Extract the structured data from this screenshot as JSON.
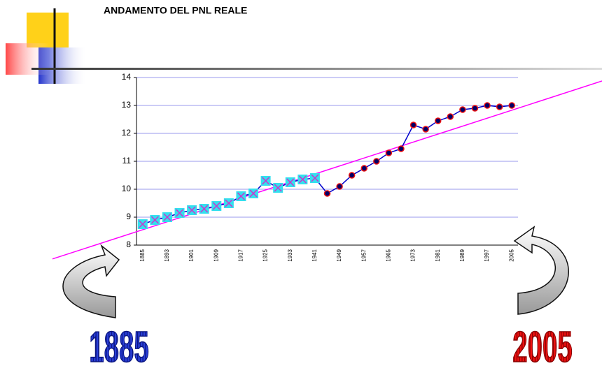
{
  "chart_data": {
    "type": "line",
    "title": "ANDAMENTO DEL PNL REALE",
    "categories": [
      "1885",
      null,
      "1893",
      null,
      "1901",
      null,
      "1909",
      null,
      "1917",
      null,
      "1925",
      null,
      "1933",
      null,
      "1941",
      null,
      "1949",
      null,
      "1957",
      null,
      "1965",
      null,
      "1973",
      null,
      "1981",
      null,
      "1989",
      null,
      "1997",
      null,
      "2005"
    ],
    "series": [
      {
        "color": "#0000cc",
        "values": [
          8.75,
          8.9,
          9.0,
          9.15,
          9.25,
          9.3,
          9.4,
          9.5,
          9.75,
          9.85,
          10.3,
          10.05,
          10.25,
          10.35,
          10.4,
          9.85,
          10.1,
          10.5,
          10.75,
          11.0,
          11.3,
          11.45,
          12.3,
          12.15,
          12.45,
          12.6,
          12.85,
          12.9,
          13.0,
          12.95,
          13.0
        ],
        "markers": [
          "x-box",
          "x-box",
          "x-box",
          "x-box",
          "x-box",
          "x-box",
          "x-box",
          "x-box",
          "x-box",
          "x-box",
          "x-box",
          "x-box",
          "x-box",
          "x-box",
          "x-box",
          "dot",
          "dot",
          "dot",
          "dot",
          "dot",
          "dot",
          "dot",
          "dot",
          "dot",
          "dot",
          "dot",
          "dot",
          "dot",
          "dot",
          "dot",
          "dot"
        ]
      }
    ],
    "trend": {
      "color": "#ff00ff",
      "values": [
        8.55,
        12.83
      ]
    },
    "ylim": [
      8,
      14
    ],
    "yticks": [
      8,
      9,
      10,
      11,
      12,
      13,
      14
    ],
    "grid": true,
    "grid_color": "#9999ee",
    "annotations": [
      "1885",
      "2005"
    ]
  }
}
